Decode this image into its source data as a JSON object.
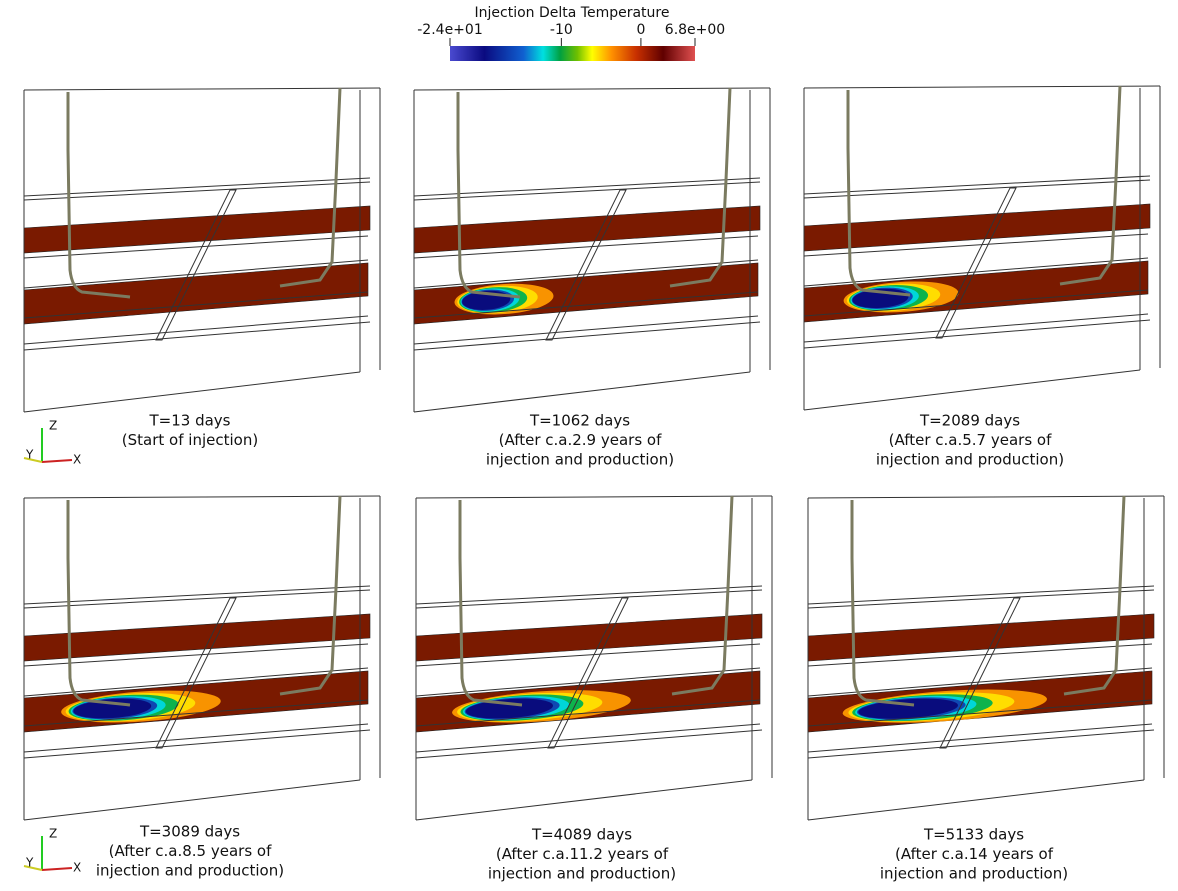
{
  "colorbar": {
    "title": "Injection Delta Temperature",
    "range": [
      -24,
      6.8
    ],
    "ticks": [
      {
        "value": -24,
        "label": "-2.4e+01"
      },
      -10,
      0,
      {
        "value": 6.8,
        "label": "6.8e+00"
      }
    ]
  },
  "panels": [
    {
      "caption": [
        "T=13 days",
        "(Start of injection)"
      ]
    },
    {
      "caption": [
        "T=1062 days",
        "(After c.a.2.9 years of",
        "injection and production)"
      ]
    },
    {
      "caption": [
        "T=2089 days",
        "(After c.a.5.7 years of",
        "injection and production)"
      ]
    },
    {
      "caption": [
        "T=3089 days",
        "(After c.a.8.5 years of",
        "injection and production)"
      ]
    },
    {
      "caption": [
        "T=4089 days",
        "(After c.a.11.2 years of",
        "injection and production)"
      ]
    },
    {
      "caption": [
        "T=5133 days",
        "(After c.a.14 years of",
        "injection and production)"
      ]
    }
  ],
  "triads": [
    {
      "z": "Z",
      "y": "Y",
      "x": "X"
    },
    {
      "z": "Z",
      "y": "Y",
      "x": "X"
    }
  ]
}
